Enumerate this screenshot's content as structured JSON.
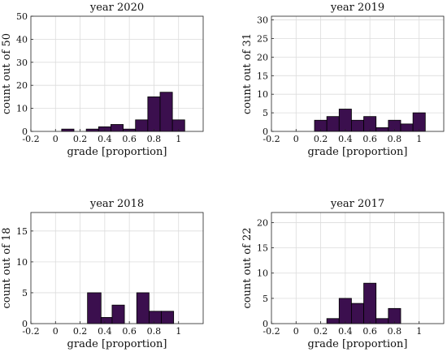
{
  "chart_data": [
    {
      "type": "bar",
      "title": "year 2020",
      "xlabel": "grade [proportion]",
      "ylabel": "count out of 50",
      "xlim": [
        -0.2,
        1.2
      ],
      "ylim": [
        0,
        50
      ],
      "xticks": [
        -0.2,
        0,
        0.2,
        0.4,
        0.6,
        0.8,
        1
      ],
      "xtick_labels": [
        "-0.2",
        "0",
        "0.2",
        "0.4",
        "0.6",
        "0.8",
        "1"
      ],
      "yticks": [
        0,
        10,
        20,
        30,
        40,
        50
      ],
      "ytick_labels": [
        "0",
        "10",
        "20",
        "30",
        "40",
        "50"
      ],
      "grid": true,
      "bar_color": "#3b0f4e",
      "bins": [
        {
          "x0": 0.05,
          "x1": 0.15,
          "count": 1
        },
        {
          "x0": 0.15,
          "x1": 0.25,
          "count": 0
        },
        {
          "x0": 0.25,
          "x1": 0.35,
          "count": 1
        },
        {
          "x0": 0.35,
          "x1": 0.45,
          "count": 2
        },
        {
          "x0": 0.45,
          "x1": 0.55,
          "count": 3
        },
        {
          "x0": 0.55,
          "x1": 0.65,
          "count": 1
        },
        {
          "x0": 0.65,
          "x1": 0.75,
          "count": 5
        },
        {
          "x0": 0.75,
          "x1": 0.85,
          "count": 15
        },
        {
          "x0": 0.85,
          "x1": 0.95,
          "count": 17
        },
        {
          "x0": 0.95,
          "x1": 1.05,
          "count": 5
        }
      ]
    },
    {
      "type": "bar",
      "title": "year 2019",
      "xlabel": "grade [proportion]",
      "ylabel": "count out of 31",
      "xlim": [
        -0.2,
        1.2
      ],
      "ylim": [
        0,
        31
      ],
      "xticks": [
        -0.2,
        0,
        0.2,
        0.4,
        0.6,
        0.8,
        1
      ],
      "xtick_labels": [
        "-0.2",
        "0",
        "0.2",
        "0.4",
        "0.6",
        "0.8",
        "1"
      ],
      "yticks": [
        0,
        5,
        10,
        15,
        20,
        25,
        30
      ],
      "ytick_labels": [
        "0",
        "5",
        "10",
        "15",
        "20",
        "25",
        "30"
      ],
      "grid": true,
      "bar_color": "#3b0f4e",
      "bins": [
        {
          "x0": 0.15,
          "x1": 0.25,
          "count": 3
        },
        {
          "x0": 0.25,
          "x1": 0.35,
          "count": 4
        },
        {
          "x0": 0.35,
          "x1": 0.45,
          "count": 6
        },
        {
          "x0": 0.45,
          "x1": 0.55,
          "count": 3
        },
        {
          "x0": 0.55,
          "x1": 0.65,
          "count": 4
        },
        {
          "x0": 0.65,
          "x1": 0.75,
          "count": 1
        },
        {
          "x0": 0.75,
          "x1": 0.85,
          "count": 3
        },
        {
          "x0": 0.85,
          "x1": 0.95,
          "count": 2
        },
        {
          "x0": 0.95,
          "x1": 1.05,
          "count": 5
        }
      ]
    },
    {
      "type": "bar",
      "title": "year 2018",
      "xlabel": "grade [proportion]",
      "ylabel": "count out of 18",
      "xlim": [
        -0.2,
        1.2
      ],
      "ylim": [
        0,
        18
      ],
      "xticks": [
        -0.2,
        0,
        0.2,
        0.4,
        0.6,
        0.8,
        1
      ],
      "xtick_labels": [
        "-0.2",
        "0",
        "0.2",
        "0.4",
        "0.6",
        "0.8",
        "1"
      ],
      "yticks": [
        0,
        5,
        10,
        15
      ],
      "ytick_labels": [
        "0",
        "5",
        "10",
        "15"
      ],
      "grid": true,
      "bar_color": "#3b0f4e",
      "bins": [
        {
          "x0": 0.26,
          "x1": 0.37,
          "count": 5
        },
        {
          "x0": 0.37,
          "x1": 0.46,
          "count": 1
        },
        {
          "x0": 0.46,
          "x1": 0.56,
          "count": 3
        },
        {
          "x0": 0.56,
          "x1": 0.66,
          "count": 0
        },
        {
          "x0": 0.66,
          "x1": 0.76,
          "count": 5
        },
        {
          "x0": 0.76,
          "x1": 0.86,
          "count": 2
        },
        {
          "x0": 0.86,
          "x1": 0.96,
          "count": 2
        }
      ]
    },
    {
      "type": "bar",
      "title": "year 2017",
      "xlabel": "grade [proportion]",
      "ylabel": "count out of 22",
      "xlim": [
        -0.2,
        1.2
      ],
      "ylim": [
        0,
        22
      ],
      "xticks": [
        -0.2,
        0,
        0.2,
        0.4,
        0.6,
        0.8,
        1
      ],
      "xtick_labels": [
        "-0.2",
        "0",
        "0.2",
        "0.4",
        "0.6",
        "0.8",
        "1"
      ],
      "yticks": [
        0,
        5,
        10,
        15,
        20
      ],
      "ytick_labels": [
        "0",
        "5",
        "10",
        "15",
        "20"
      ],
      "grid": true,
      "bar_color": "#3b0f4e",
      "bins": [
        {
          "x0": 0.25,
          "x1": 0.35,
          "count": 1
        },
        {
          "x0": 0.35,
          "x1": 0.45,
          "count": 5
        },
        {
          "x0": 0.45,
          "x1": 0.55,
          "count": 4
        },
        {
          "x0": 0.55,
          "x1": 0.65,
          "count": 8
        },
        {
          "x0": 0.65,
          "x1": 0.75,
          "count": 1
        },
        {
          "x0": 0.75,
          "x1": 0.85,
          "count": 3
        }
      ]
    }
  ]
}
